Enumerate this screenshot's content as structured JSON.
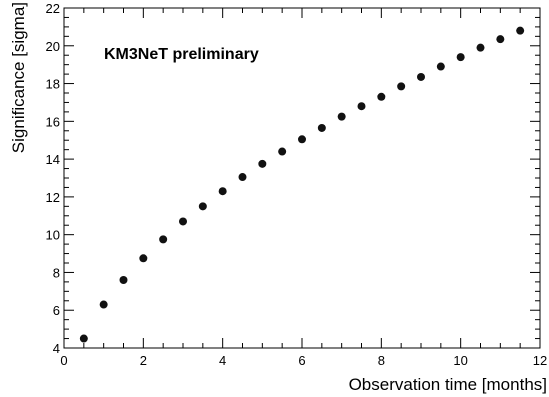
{
  "chart_data": {
    "type": "scatter",
    "xlabel": "Observation time [months]",
    "ylabel": "Significance [sigma]",
    "annotation": "KM3NeT preliminary",
    "xlim": [
      0,
      12
    ],
    "ylim": [
      4,
      22
    ],
    "xticks": [
      0,
      2,
      4,
      6,
      8,
      10,
      12
    ],
    "yticks": [
      4,
      6,
      8,
      10,
      12,
      14,
      16,
      18,
      20,
      22
    ],
    "grid": false,
    "legend": "none",
    "marker_color": "#111111",
    "series": [
      {
        "x": [
          0.5,
          1.0,
          1.5,
          2.0,
          2.5,
          3.0,
          3.5,
          4.0,
          4.5,
          5.0,
          5.5,
          6.0,
          6.5,
          7.0,
          7.5,
          8.0,
          8.5,
          9.0,
          9.5,
          10.0,
          10.5,
          11.0,
          11.5
        ],
        "y": [
          4.5,
          6.3,
          7.6,
          8.75,
          9.75,
          10.7,
          11.5,
          12.3,
          13.05,
          13.75,
          14.4,
          15.05,
          15.65,
          16.25,
          16.8,
          17.3,
          17.85,
          18.35,
          18.9,
          19.4,
          19.9,
          20.35,
          20.8
        ]
      }
    ]
  }
}
